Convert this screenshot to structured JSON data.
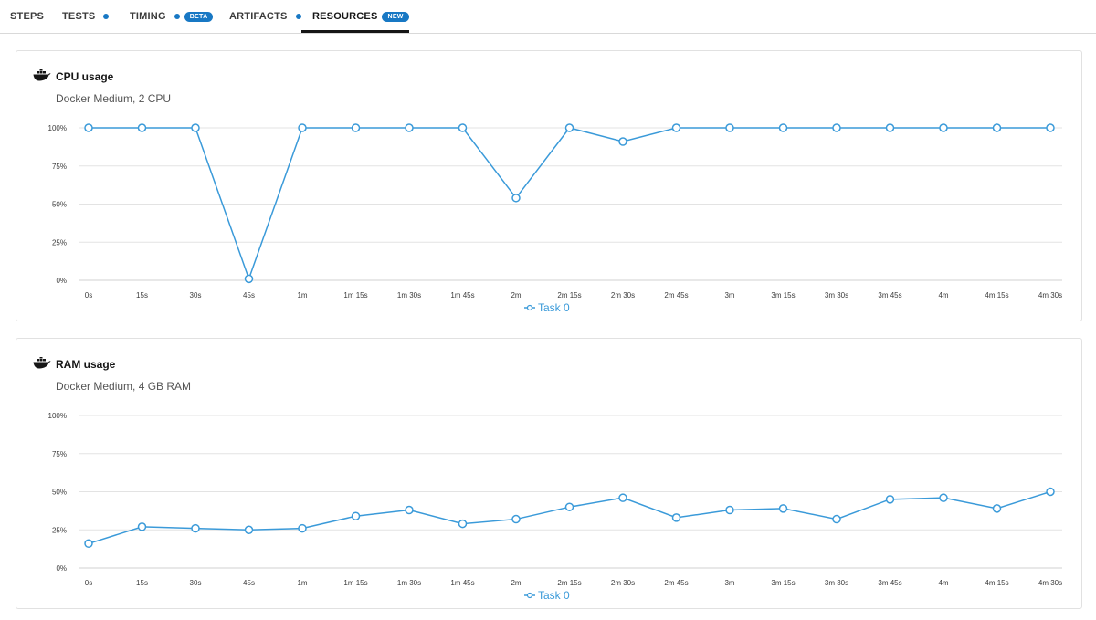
{
  "tabs": [
    {
      "label": "STEPS",
      "dot": false,
      "badge": ""
    },
    {
      "label": "TESTS",
      "dot": true,
      "badge": ""
    },
    {
      "label": "TIMING",
      "dot": true,
      "badge": "BETA"
    },
    {
      "label": "ARTIFACTS",
      "dot": true,
      "badge": ""
    },
    {
      "label": "RESOURCES",
      "dot": false,
      "badge": "NEW"
    }
  ],
  "active_tab": "RESOURCES",
  "colors": {
    "accent": "#1878c4",
    "series": "#3a9ad9",
    "grid": "#e3e3e3"
  },
  "cpu": {
    "title": "CPU usage",
    "subtitle": "Docker Medium, 2 CPU",
    "icon": "docker-icon"
  },
  "ram": {
    "title": "RAM usage",
    "subtitle": "Docker Medium, 4 GB RAM",
    "icon": "docker-icon"
  },
  "chart_data": [
    {
      "type": "line",
      "title": "CPU usage",
      "subtitle": "Docker Medium, 2 CPU",
      "x": [
        "0s",
        "15s",
        "30s",
        "45s",
        "1m",
        "1m 15s",
        "1m 30s",
        "1m 45s",
        "2m",
        "2m 15s",
        "2m 30s",
        "2m 45s",
        "3m",
        "3m 15s",
        "3m 30s",
        "3m 45s",
        "4m",
        "4m 15s",
        "4m 30s"
      ],
      "yticks": [
        "0%",
        "25%",
        "50%",
        "75%",
        "100%"
      ],
      "ylim": [
        0,
        100
      ],
      "grid": true,
      "legend_position": "bottom-center",
      "series": [
        {
          "name": "Task 0",
          "values": [
            100,
            100,
            100,
            1,
            100,
            100,
            100,
            100,
            54,
            100,
            91,
            100,
            100,
            100,
            100,
            100,
            100,
            100,
            100
          ]
        }
      ]
    },
    {
      "type": "line",
      "title": "RAM usage",
      "subtitle": "Docker Medium, 4 GB RAM",
      "x": [
        "0s",
        "15s",
        "30s",
        "45s",
        "1m",
        "1m 15s",
        "1m 30s",
        "1m 45s",
        "2m",
        "2m 15s",
        "2m 30s",
        "2m 45s",
        "3m",
        "3m 15s",
        "3m 30s",
        "3m 45s",
        "4m",
        "4m 15s",
        "4m 30s"
      ],
      "yticks": [
        "0%",
        "25%",
        "50%",
        "75%",
        "100%"
      ],
      "ylim": [
        0,
        100
      ],
      "grid": true,
      "legend_position": "bottom-center",
      "series": [
        {
          "name": "Task 0",
          "values": [
            16,
            27,
            26,
            25,
            26,
            34,
            38,
            29,
            32,
            40,
            46,
            33,
            38,
            39,
            32,
            45,
            46,
            39,
            50
          ]
        }
      ]
    }
  ]
}
